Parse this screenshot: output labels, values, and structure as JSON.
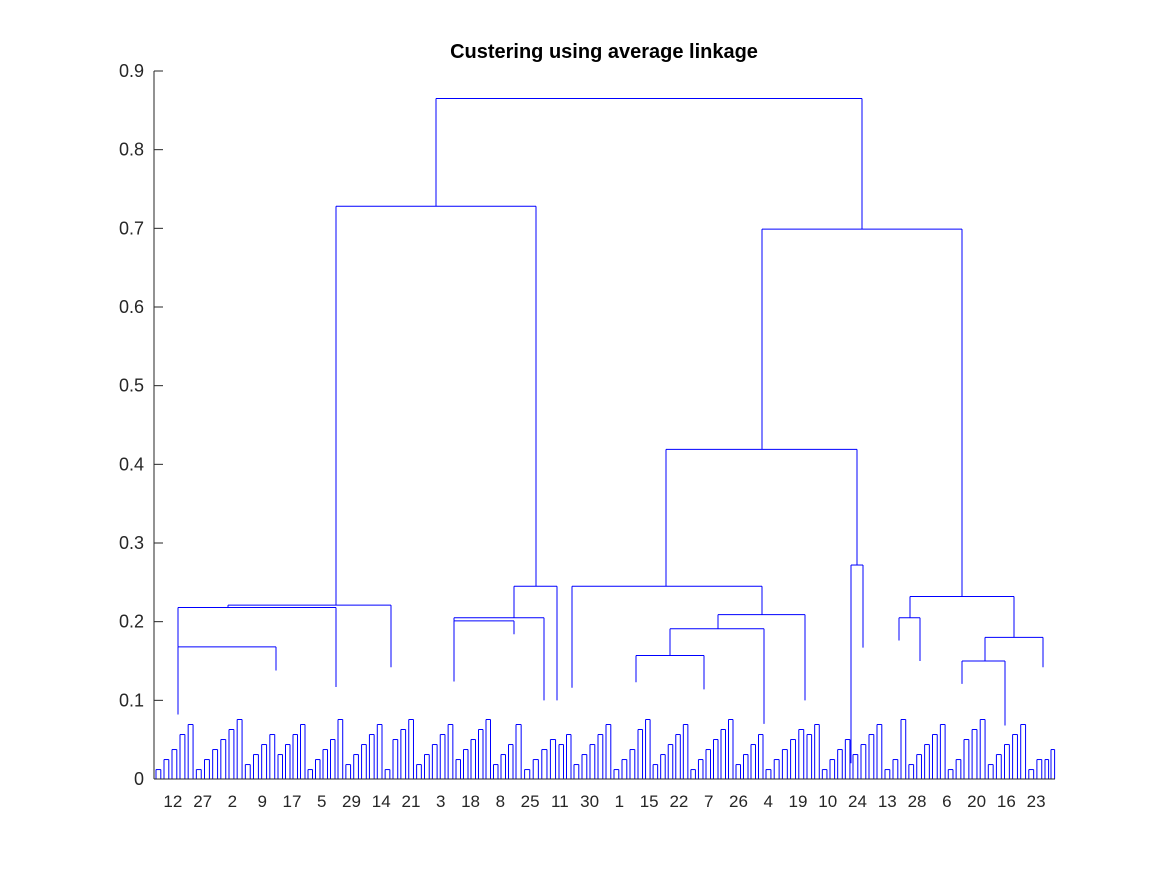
{
  "chart_data": {
    "type": "dendrogram",
    "title": "Custering using average linkage",
    "xlabel": "",
    "ylabel": "",
    "ylim": [
      0,
      0.9
    ],
    "y_ticks": [
      "0",
      "0.1",
      "0.2",
      "0.3",
      "0.4",
      "0.5",
      "0.6",
      "0.7",
      "0.8",
      "0.9"
    ],
    "y_tick_values": [
      0,
      0.1,
      0.2,
      0.3,
      0.4,
      0.5,
      0.6,
      0.7,
      0.8,
      0.9
    ],
    "leaf_count": 30,
    "leaf_labels": [
      "12",
      "27",
      "2",
      "9",
      "17",
      "5",
      "29",
      "14",
      "21",
      "3",
      "18",
      "8",
      "25",
      "11",
      "30",
      "1",
      "15",
      "22",
      "7",
      "26",
      "4",
      "19",
      "10",
      "24",
      "13",
      "28",
      "6",
      "20",
      "16",
      "23"
    ],
    "merge_heights": {
      "root": 0.865,
      "left_main": 0.728,
      "right_main": 0.699,
      "right_inner": 0.419,
      "left_sub_a": 0.221,
      "left_sub_a_inner": 0.218,
      "left_sub_a_leftmost": 0.168,
      "left_sub_b": 0.245,
      "left_sub_b_inner": 0.205,
      "left_sub_b_inner2": 0.201,
      "right_inner_left": 0.245,
      "right_inner_left_sub": 0.209,
      "right_inner_left_sub2": 0.191,
      "right_inner_left_sub3": 0.157,
      "right_inner_right": 0.272,
      "right_outer": 0.232,
      "right_outer_sub_a": 0.205,
      "right_outer_sub_b": 0.18,
      "right_outer_sub_b2": 0.15
    },
    "line_color": "#0000ff",
    "grid": false,
    "legend": "none"
  }
}
